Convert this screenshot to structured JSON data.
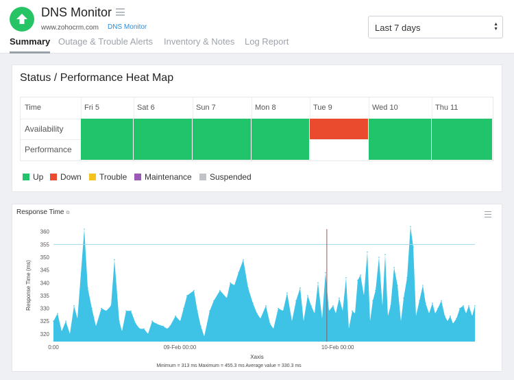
{
  "header": {
    "title": "DNS Monitor",
    "url": "www.zohocrm.com",
    "monitor_type": "DNS Monitor",
    "status_icon": "up-arrow-icon",
    "status_color": "#27c466"
  },
  "tabs": [
    {
      "label": "Summary",
      "active": true
    },
    {
      "label": "Outage & Trouble Alerts",
      "active": false
    },
    {
      "label": "Inventory & Notes",
      "active": false
    },
    {
      "label": "Log Report",
      "active": false
    }
  ],
  "period_select": {
    "value": "Last 7 days"
  },
  "heatmap": {
    "title": "Status / Performance Heat Map",
    "time_header": "Time",
    "days": [
      "Fri 5",
      "Sat 6",
      "Sun 7",
      "Mon 8",
      "Tue 9",
      "Wed 10",
      "Thu 11"
    ],
    "rows": [
      {
        "label": "Availability",
        "statuses": [
          "up",
          "up",
          "up",
          "up",
          "down",
          "up",
          "up"
        ]
      },
      {
        "label": "Performance",
        "statuses": [
          "up",
          "up",
          "up",
          "up",
          "none",
          "up",
          "up"
        ]
      }
    ]
  },
  "legend": [
    {
      "label": "Up",
      "key": "up",
      "color": "#21c46a"
    },
    {
      "label": "Down",
      "key": "down",
      "color": "#ea4b2f"
    },
    {
      "label": "Trouble",
      "key": "trouble",
      "color": "#f5c11d"
    },
    {
      "label": "Maintenance",
      "key": "maintenance",
      "color": "#9b59b6"
    },
    {
      "label": "Suspended",
      "key": "suspended",
      "color": "#c0c2c6"
    }
  ],
  "chart_data": {
    "type": "area",
    "title": "Response Time",
    "xlabel": "Xaxis",
    "ylabel": "Response Time (ms)",
    "ylim": [
      317,
      361
    ],
    "yticks": [
      320,
      325,
      330,
      335,
      340,
      345,
      350,
      355,
      360
    ],
    "x_tick_labels": [
      "0:00",
      "09-Feb 00:00",
      "10-Feb 00:00"
    ],
    "reference_line": 355,
    "marker_x": 0.6486,
    "fill_color": "#3ec3e6",
    "stats": "Minimum = 313 ms    Maximum = 455.3 ms    Average value = 330.3 ms",
    "x": [
      0,
      0.0098,
      0.0195,
      0.0293,
      0.039,
      0.0488,
      0.0569,
      0.0732,
      0.0813,
      0.0911,
      0.1008,
      0.1138,
      0.1252,
      0.1366,
      0.1447,
      0.1561,
      0.1626,
      0.1723,
      0.1837,
      0.1951,
      0.2049,
      0.2146,
      0.2244,
      0.2341,
      0.2439,
      0.2602,
      0.2699,
      0.2764,
      0.2894,
      0.3008,
      0.3089,
      0.3171,
      0.3333,
      0.3415,
      0.3496,
      0.3577,
      0.3707,
      0.3805,
      0.3951,
      0.4114,
      0.4195,
      0.4293,
      0.439,
      0.4504,
      0.4618,
      0.4732,
      0.4829,
      0.4911,
      0.5041,
      0.5138,
      0.522,
      0.5333,
      0.5447,
      0.5545,
      0.5659,
      0.5756,
      0.5854,
      0.5935,
      0.6033,
      0.6114,
      0.6195,
      0.6276,
      0.6374,
      0.6455,
      0.6537,
      0.6634,
      0.6699,
      0.678,
      0.6862,
      0.6943,
      0.7008,
      0.7089,
      0.7154,
      0.722,
      0.7285,
      0.7366,
      0.7447,
      0.7512,
      0.7577,
      0.7642,
      0.7724,
      0.7805,
      0.787,
      0.7935,
      0.8,
      0.8081,
      0.8163,
      0.8244,
      0.8309,
      0.839,
      0.8472,
      0.8537,
      0.8602,
      0.8683,
      0.8764,
      0.8829,
      0.891,
      0.8992,
      0.9057,
      0.9122,
      0.9203,
      0.9285,
      0.935,
      0.9415,
      0.948,
      0.9561,
      0.9642,
      0.9724,
      0.9789,
      0.9854,
      0.9935,
      1
    ],
    "values": [
      325,
      328,
      321,
      325,
      320,
      331,
      326,
      361,
      338,
      330,
      323,
      330,
      329,
      331,
      349,
      325,
      321,
      329,
      329,
      324,
      322,
      322,
      320,
      325,
      324,
      323,
      322,
      323,
      327,
      325,
      330,
      335,
      337,
      329,
      323,
      319,
      329,
      333,
      337,
      334,
      340,
      339,
      344,
      349,
      338,
      332,
      328,
      326,
      331,
      324,
      322,
      330,
      329,
      336,
      325,
      333,
      338,
      325,
      335,
      331,
      328,
      340,
      326,
      344,
      329,
      331,
      328,
      334,
      329,
      342,
      322,
      329,
      328,
      341,
      343,
      335,
      352,
      325,
      333,
      337,
      350,
      331,
      351,
      327,
      331,
      346,
      339,
      325,
      334,
      342,
      362,
      354,
      327,
      333,
      339,
      332,
      328,
      332,
      328,
      330,
      333,
      327,
      325,
      327,
      324,
      326,
      330,
      331,
      328,
      331,
      327,
      331
    ]
  }
}
